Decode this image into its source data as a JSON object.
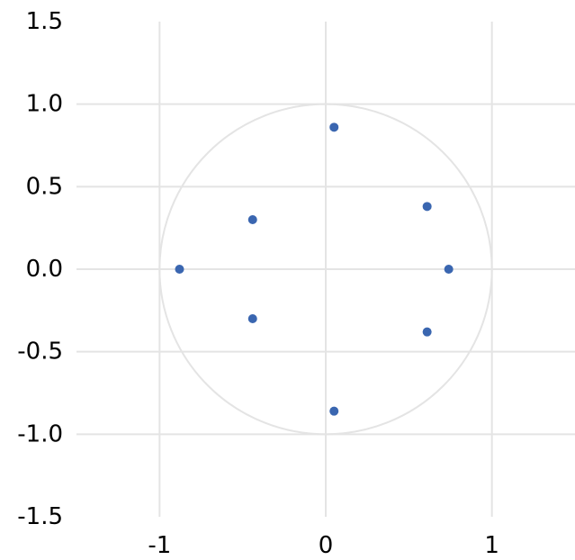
{
  "chart_data": {
    "type": "scatter",
    "title": "",
    "xlabel": "",
    "ylabel": "",
    "xlim": [
      -1.5,
      1.5
    ],
    "ylim": [
      -1.5,
      1.5
    ],
    "x_ticks": [
      "-1",
      "0",
      "1"
    ],
    "y_ticks": [
      "1.5",
      "1.0",
      "0.5",
      "0.0",
      "-0.5",
      "-1.0",
      "-1.5"
    ],
    "grid": true,
    "legend": "none",
    "reference_circle": {
      "center": [
        0,
        0
      ],
      "radius": 1
    },
    "series": [
      {
        "color": "#3a66b0",
        "points": [
          {
            "x": 0.05,
            "y": 0.86
          },
          {
            "x": 0.61,
            "y": 0.38
          },
          {
            "x": -0.44,
            "y": 0.3
          },
          {
            "x": -0.88,
            "y": 0.0
          },
          {
            "x": 0.74,
            "y": 0.0
          },
          {
            "x": -0.44,
            "y": -0.3
          },
          {
            "x": 0.61,
            "y": -0.38
          },
          {
            "x": 0.05,
            "y": -0.86
          }
        ]
      }
    ],
    "colors": {
      "grid": "#e4e4e4",
      "axis": "#e4e4e4",
      "circle": "#e4e4e4",
      "text": "#000000"
    }
  }
}
